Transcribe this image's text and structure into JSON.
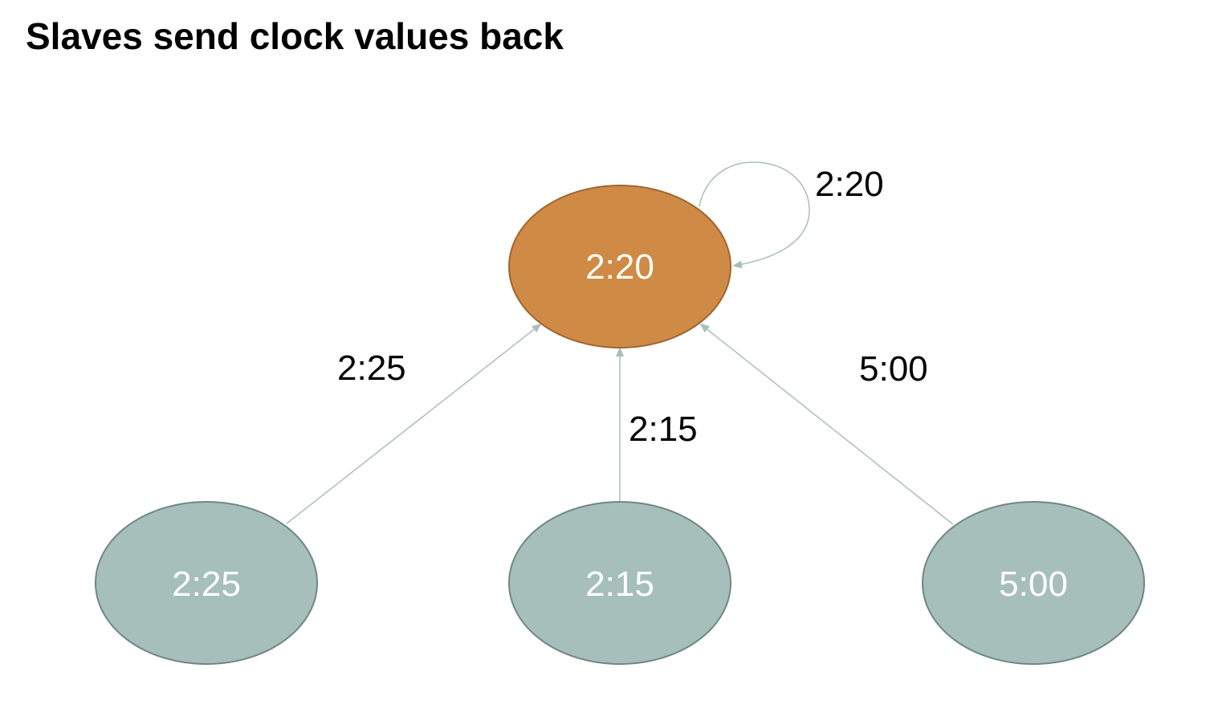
{
  "title": "Slaves send clock values back",
  "colors": {
    "master_fill": "#CF8B45",
    "master_stroke": "#9E6630",
    "slave_fill": "#A6BFBB",
    "slave_stroke": "#6F8783",
    "edge_stroke": "#A9BFBC",
    "node_text": "#FFFFFF",
    "edge_text": "#000000"
  },
  "nodes": {
    "master": {
      "label": "2:20"
    },
    "slave_left": {
      "label": "2:25"
    },
    "slave_center": {
      "label": "2:15"
    },
    "slave_right": {
      "label": "5:00"
    }
  },
  "edges": {
    "self_loop": {
      "label": "2:20"
    },
    "left_to_master": {
      "label": "2:25"
    },
    "center_to_master": {
      "label": "2:15"
    },
    "right_to_master": {
      "label": "5:00"
    }
  }
}
